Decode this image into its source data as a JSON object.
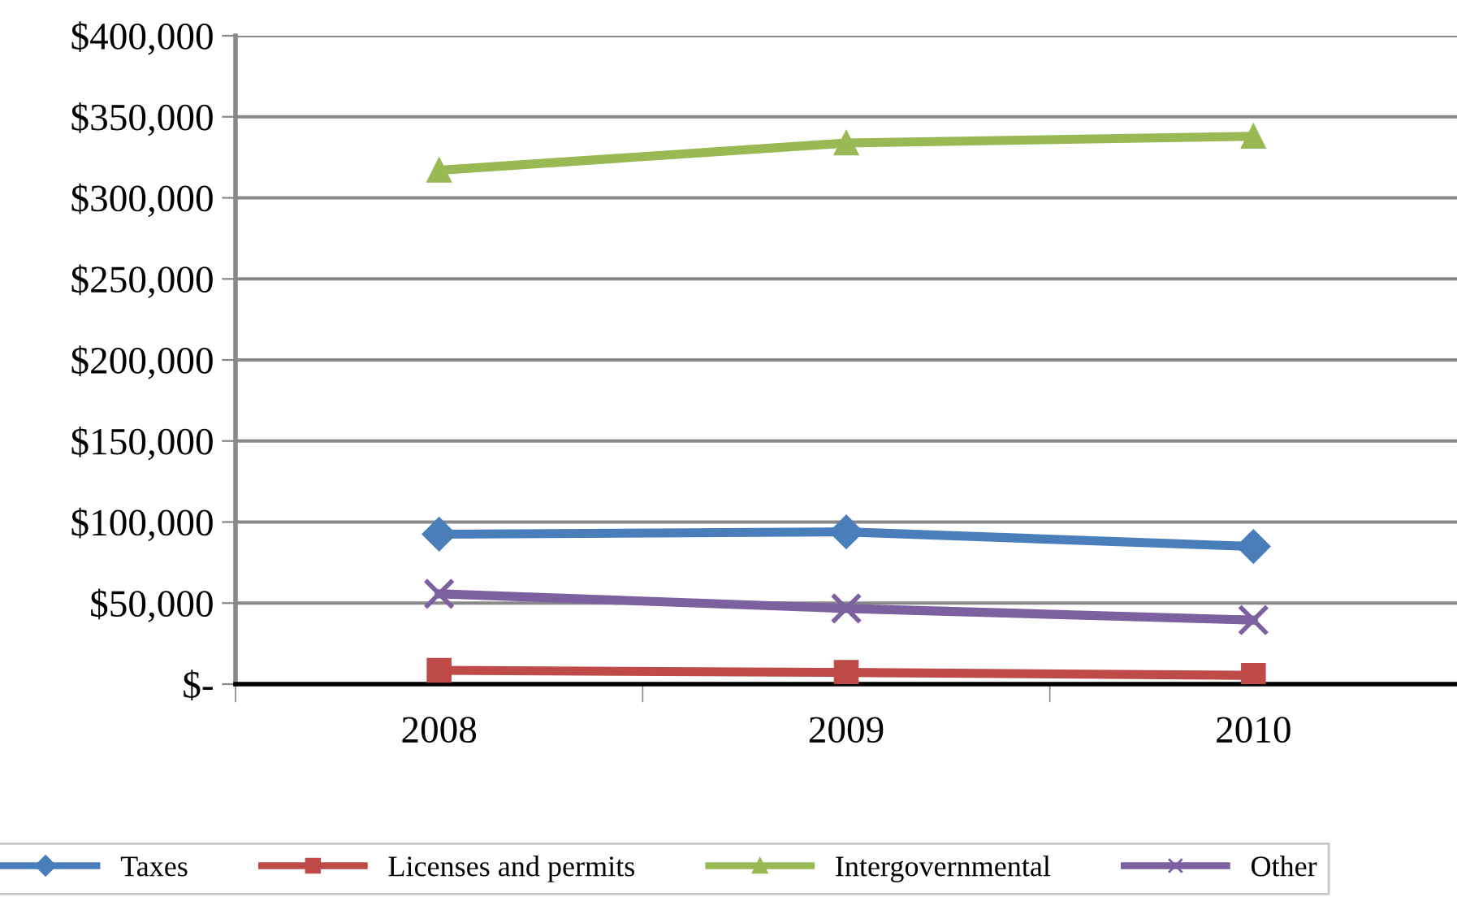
{
  "chart_data": {
    "type": "line",
    "categories": [
      "2008",
      "2009",
      "2010"
    ],
    "series": [
      {
        "name": "Taxes",
        "color": "#4a7ebb",
        "marker": "diamond",
        "values": [
          92500,
          93900,
          84900
        ]
      },
      {
        "name": "Licenses and permits",
        "color": "#be4b48",
        "marker": "square",
        "values": [
          8500,
          7200,
          5400
        ]
      },
      {
        "name": "Intergovernmental",
        "color": "#98b954",
        "marker": "triangle",
        "values": [
          317000,
          333800,
          338000
        ]
      },
      {
        "name": "Other",
        "color": "#7d60a0",
        "marker": "cross",
        "values": [
          55700,
          46700,
          39500
        ]
      }
    ],
    "ylim": [
      0,
      400000
    ],
    "yticks": [
      {
        "value": 0,
        "label": "$-"
      },
      {
        "value": 50000,
        "label": "$50,000"
      },
      {
        "value": 100000,
        "label": "$100,000"
      },
      {
        "value": 150000,
        "label": "$150,000"
      },
      {
        "value": 200000,
        "label": "$200,000"
      },
      {
        "value": 250000,
        "label": "$250,000"
      },
      {
        "value": 300000,
        "label": "$300,000"
      },
      {
        "value": 350000,
        "label": "$350,000"
      },
      {
        "value": 400000,
        "label": "$400,000"
      }
    ],
    "grid": "y",
    "legend": "bottom"
  }
}
